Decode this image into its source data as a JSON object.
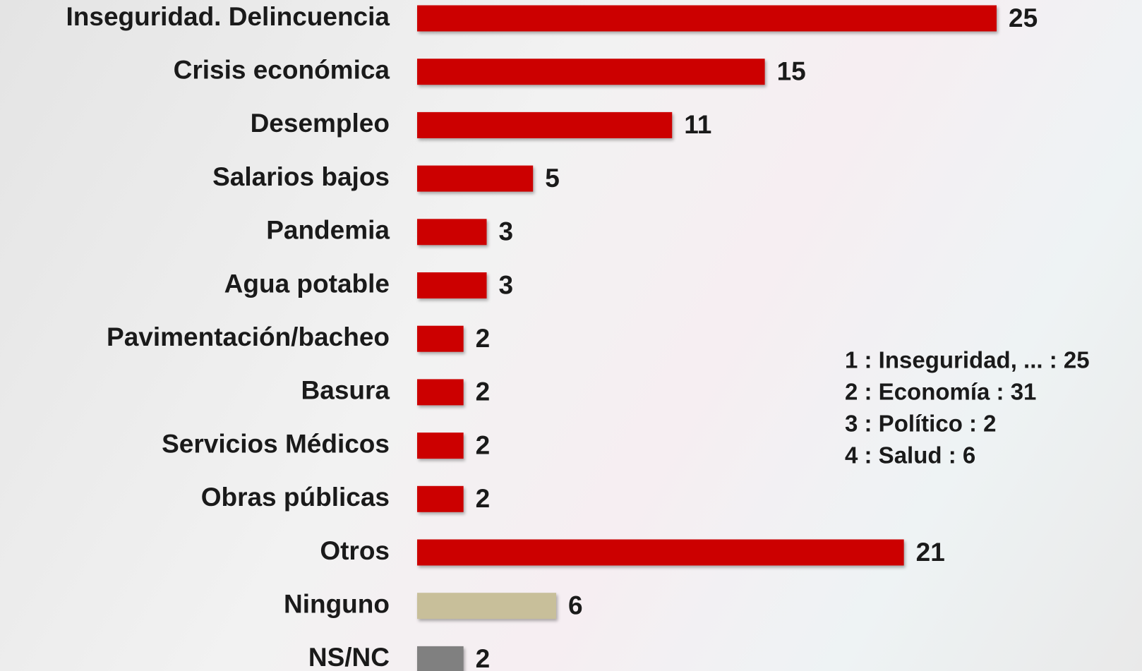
{
  "chart_data": {
    "type": "bar",
    "orientation": "horizontal",
    "categories": [
      "Inseguridad. Delincuencia",
      "Crisis económica",
      "Desempleo",
      "Salarios bajos",
      "Pandemia",
      "Agua potable",
      "Pavimentación/bacheo",
      "Basura",
      "Servicios Médicos",
      "Obras públicas",
      "Otros",
      "Ninguno",
      "NS/NC"
    ],
    "values": [
      25,
      15,
      11,
      5,
      3,
      3,
      2,
      2,
      2,
      2,
      21,
      6,
      2
    ],
    "colors": [
      "#cc0000",
      "#cc0000",
      "#cc0000",
      "#cc0000",
      "#cc0000",
      "#cc0000",
      "#cc0000",
      "#cc0000",
      "#cc0000",
      "#cc0000",
      "#cc0000",
      "#c8bf9a",
      "#808080"
    ],
    "xlim": [
      0,
      25
    ],
    "annotations": [
      "1 : Inseguridad, ... : 25",
      "2 : Economía : 31",
      "3 : Político : 2",
      "4 : Salud : 6"
    ]
  }
}
